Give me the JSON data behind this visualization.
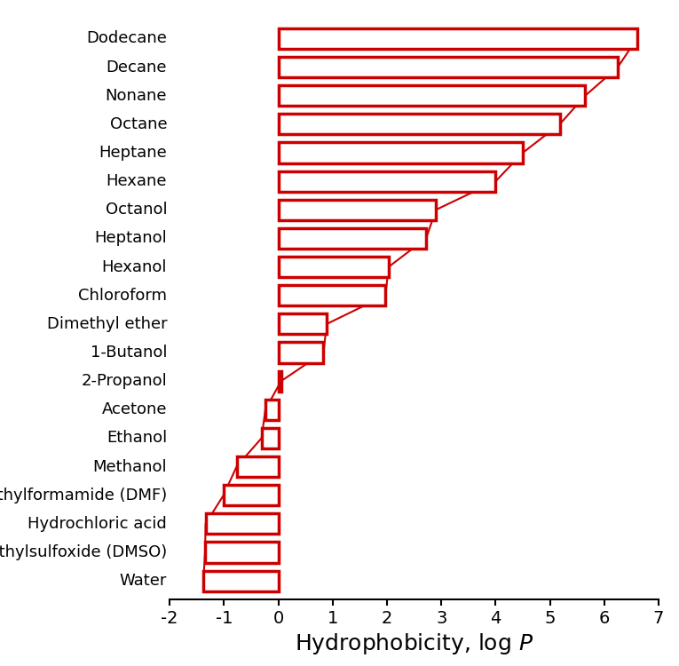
{
  "solvents": [
    "Dodecane",
    "Decane",
    "Nonane",
    "Octane",
    "Heptane",
    "Hexane",
    "Octanol",
    "Heptanol",
    "Hexanol",
    "Chloroform",
    "Dimethyl ether",
    "1-Butanol",
    "2-Propanol",
    "Acetone",
    "Ethanol",
    "Methanol",
    "Dimethylformamide (DMF)",
    "Hydrochloric acid",
    "Dimethylsulfoxide (DMSO)",
    "Water"
  ],
  "logP": [
    6.6,
    6.25,
    5.65,
    5.18,
    4.5,
    4.0,
    2.9,
    2.72,
    2.03,
    1.97,
    0.89,
    0.83,
    0.05,
    -0.24,
    -0.31,
    -0.77,
    -1.01,
    -1.34,
    -1.35,
    -1.38
  ],
  "bar_color": "#cc0000",
  "line_color": "#cc0000",
  "xlim": [
    -2,
    7
  ],
  "xticks": [
    -2,
    -1,
    0,
    1,
    2,
    3,
    4,
    5,
    6,
    7
  ],
  "xlabel": "Hydrophobicity, log $P$",
  "xlabel_fontsize": 18,
  "tick_fontsize": 14,
  "label_fontsize": 13,
  "bar_height": 0.72,
  "linewidth": 2.5
}
